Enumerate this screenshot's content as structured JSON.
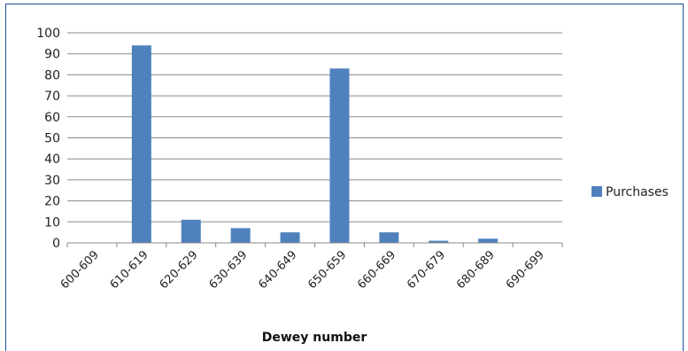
{
  "chart_data": {
    "type": "bar",
    "categories": [
      "600-609",
      "610-619",
      "620-629",
      "630-639",
      "640-649",
      "650-659",
      "660-669",
      "670-679",
      "680-689",
      "690-699"
    ],
    "series": [
      {
        "name": "Purchases",
        "values": [
          0,
          94,
          11,
          7,
          5,
          83,
          5,
          1,
          2,
          0
        ],
        "color": "#4f81bd"
      }
    ],
    "title": "",
    "xlabel": "Dewey number",
    "ylabel": "",
    "ylim": [
      0,
      100
    ],
    "yticks": [
      0,
      10,
      20,
      30,
      40,
      50,
      60,
      70,
      80,
      90,
      100
    ],
    "grid": true,
    "legend_position": "right"
  }
}
